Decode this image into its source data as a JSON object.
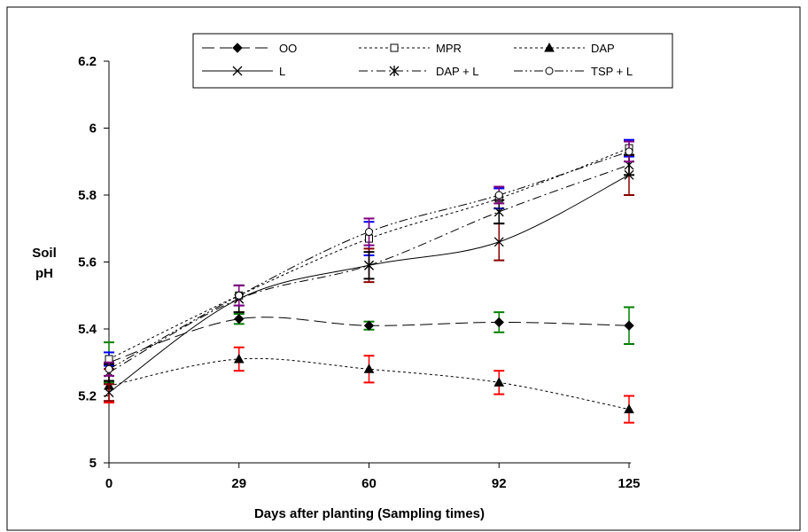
{
  "chart_data": {
    "type": "line",
    "xlabel": "Days after planting (Sampling times)",
    "ylabel": [
      "Soil",
      "pH"
    ],
    "x": [
      0,
      29,
      60,
      92,
      125
    ],
    "ylim": [
      5,
      6.2
    ],
    "yticks": [
      5,
      5.2,
      5.4,
      5.6,
      5.8,
      6,
      6.2
    ],
    "yticklabels": [
      "5",
      "5.2",
      "5.4",
      "5.6",
      "5.8",
      "6",
      "6.2"
    ],
    "grid": false,
    "legend_position": "top",
    "series": [
      {
        "name": "OO",
        "values": [
          5.3,
          5.43,
          5.41,
          5.42,
          5.41
        ],
        "errors": [
          0.06,
          0.015,
          0.012,
          0.03,
          0.055
        ],
        "marker": "diamond-filled",
        "dash": "long",
        "error_color": "#008000"
      },
      {
        "name": "MPR",
        "values": [
          5.31,
          5.5,
          5.67,
          5.79,
          5.94
        ],
        "errors": [
          0.02,
          0.03,
          0.05,
          0.03,
          0.025
        ],
        "marker": "square-open",
        "dash": "dotted",
        "error_color": "#0000ff"
      },
      {
        "name": "DAP",
        "values": [
          5.23,
          5.31,
          5.28,
          5.24,
          5.16
        ],
        "errors": [
          0.05,
          0.035,
          0.04,
          0.035,
          0.04
        ],
        "marker": "triangle-filled",
        "dash": "dotted",
        "error_color": "#ff0000"
      },
      {
        "name": "L",
        "values": [
          5.21,
          5.49,
          5.59,
          5.66,
          5.86
        ],
        "errors": [
          0.025,
          0.04,
          0.05,
          0.055,
          0.06
        ],
        "marker": "x",
        "dash": "solid",
        "error_color": "#8b0000"
      },
      {
        "name": "DAP + L",
        "values": [
          5.27,
          5.49,
          5.59,
          5.75,
          5.89
        ],
        "errors": [
          0.025,
          0.04,
          0.04,
          0.035,
          0.03
        ],
        "marker": "star",
        "dash": "dashdot",
        "error_color": "#000000"
      },
      {
        "name": "TSP + L",
        "values": [
          5.28,
          5.5,
          5.69,
          5.8,
          5.93
        ],
        "errors": [
          0.02,
          0.03,
          0.04,
          0.025,
          0.03
        ],
        "marker": "circle-open",
        "dash": "dashdotdot",
        "error_color": "#800080"
      }
    ]
  }
}
